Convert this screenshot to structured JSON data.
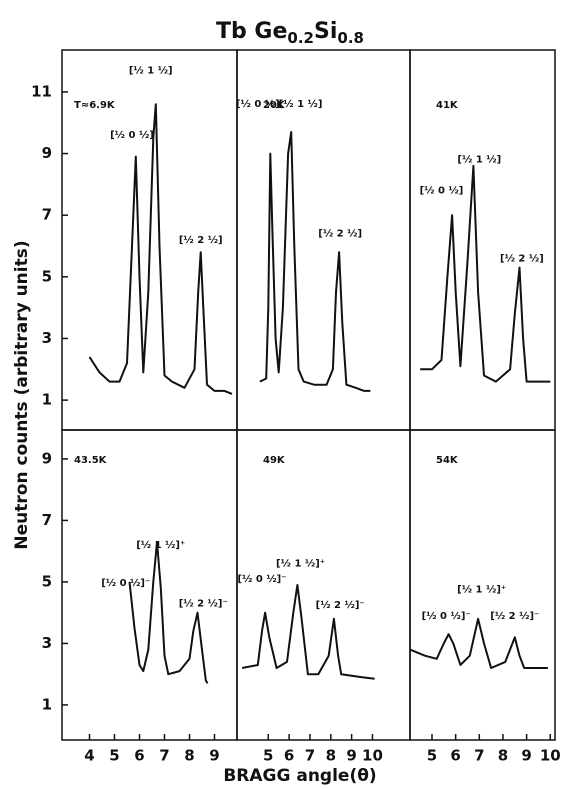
{
  "title_parts": [
    "Tb Ge",
    "0.2",
    "Si",
    "0.8"
  ],
  "y_label": "Neutron counts (arbitrary units)",
  "x_label": "BRAGG angle(θ)",
  "chart_data": [
    {
      "type": "line",
      "title": "T≈6.9K",
      "color": "#111111",
      "x": [
        4.0,
        4.4,
        4.8,
        5.2,
        5.5,
        5.7,
        5.85,
        6.0,
        6.15,
        6.35,
        6.55,
        6.65,
        6.8,
        7.0,
        7.3,
        7.8,
        8.2,
        8.35,
        8.45,
        8.55,
        8.7,
        9.0,
        9.4,
        9.7
      ],
      "values": [
        2.4,
        1.9,
        1.6,
        1.6,
        2.2,
        6.0,
        8.9,
        5.0,
        1.9,
        4.5,
        9.5,
        10.6,
        6.0,
        1.8,
        1.6,
        1.4,
        2.0,
        4.5,
        5.8,
        4.0,
        1.5,
        1.3,
        1.3,
        1.2
      ],
      "xlim": [
        2.9,
        9.9
      ],
      "ylim": [
        0.03,
        12.36
      ],
      "yticks": [
        1,
        3,
        5,
        7,
        9,
        11
      ],
      "annotations": [
        {
          "text": "[½ 0 ½]",
          "x": 5.7,
          "y": 9.6
        },
        {
          "text": "[½ 1 ½]",
          "x": 6.45,
          "y": 11.7
        },
        {
          "text": "[½ 2 ½]",
          "x": 8.45,
          "y": 6.2
        }
      ]
    },
    {
      "type": "line",
      "title": "20K",
      "color": "#111111",
      "x": [
        4.6,
        4.9,
        5.0,
        5.1,
        5.2,
        5.35,
        5.5,
        5.7,
        5.95,
        6.1,
        6.25,
        6.45,
        6.7,
        7.2,
        7.8,
        8.1,
        8.25,
        8.4,
        8.55,
        8.75,
        9.2,
        9.6,
        9.9
      ],
      "values": [
        1.6,
        1.7,
        4.0,
        9.0,
        6.5,
        3.0,
        1.9,
        4.0,
        9.0,
        9.7,
        6.0,
        2.0,
        1.6,
        1.5,
        1.5,
        2.0,
        4.5,
        5.8,
        3.5,
        1.5,
        1.4,
        1.3,
        1.3
      ],
      "xlim": [
        3.5,
        11.8
      ],
      "ylim": [
        0.03,
        12.36
      ],
      "annotations": [
        {
          "text": "[½ 0 ½]",
          "x": 4.5,
          "y": 10.6
        },
        {
          "text": "[½ 1 ½]",
          "x": 6.55,
          "y": 10.6
        },
        {
          "text": "[½ 2 ½]",
          "x": 8.45,
          "y": 6.4
        }
      ]
    },
    {
      "type": "line",
      "title": "41K",
      "color": "#111111",
      "x": [
        4.5,
        5.0,
        5.4,
        5.65,
        5.85,
        6.0,
        6.2,
        6.5,
        6.75,
        6.95,
        7.2,
        7.7,
        8.3,
        8.5,
        8.7,
        8.85,
        9.0,
        9.5,
        10.0
      ],
      "values": [
        2.0,
        2.0,
        2.3,
        5.0,
        7.0,
        4.5,
        2.1,
        5.5,
        8.6,
        4.5,
        1.8,
        1.6,
        2.0,
        3.8,
        5.3,
        3.0,
        1.6,
        1.6,
        1.6
      ],
      "xlim": [
        4.07,
        10.2
      ],
      "ylim": [
        0.03,
        12.36
      ],
      "annotations": [
        {
          "text": "[½ 0 ½]",
          "x": 5.4,
          "y": 7.8
        },
        {
          "text": "[½ 1 ½]",
          "x": 7.0,
          "y": 8.8
        },
        {
          "text": "[½ 2 ½]",
          "x": 8.8,
          "y": 5.6
        }
      ]
    },
    {
      "type": "line",
      "title": "43.5K",
      "color": "#111111",
      "x": [
        5.6,
        5.8,
        6.0,
        6.15,
        6.35,
        6.55,
        6.7,
        6.85,
        7.0,
        7.15,
        7.6,
        8.0,
        8.15,
        8.32,
        8.5,
        8.65,
        8.72
      ],
      "values": [
        5.0,
        3.5,
        2.3,
        2.1,
        2.8,
        5.0,
        6.3,
        4.8,
        2.6,
        2.0,
        2.1,
        2.5,
        3.4,
        4.0,
        2.8,
        1.8,
        1.7
      ],
      "xlim": [
        2.9,
        9.9
      ],
      "ylim": [
        -0.14,
        9.94
      ],
      "xticks": [
        4,
        5,
        6,
        7,
        8,
        9
      ],
      "yticks": [
        1,
        3,
        5,
        7,
        9
      ],
      "annotations": [
        {
          "text": "[½ 0 ½]⁻",
          "x": 5.45,
          "y": 4.97
        },
        {
          "text": "[½ 1 ½]⁺",
          "x": 6.85,
          "y": 6.2
        },
        {
          "text": "[½ 2 ½]⁻",
          "x": 8.55,
          "y": 4.3
        }
      ]
    },
    {
      "type": "line",
      "title": "49K",
      "color": "#111111",
      "x": [
        3.75,
        4.5,
        4.7,
        4.85,
        5.05,
        5.4,
        5.9,
        6.2,
        6.4,
        6.6,
        6.9,
        7.4,
        7.9,
        8.15,
        8.35,
        8.5,
        9.5,
        10.1
      ],
      "values": [
        2.2,
        2.3,
        3.4,
        4.0,
        3.2,
        2.2,
        2.4,
        4.0,
        4.9,
        3.8,
        2.0,
        2.0,
        2.6,
        3.8,
        2.6,
        2.0,
        1.9,
        1.85
      ],
      "xlim": [
        3.5,
        11.8
      ],
      "ylim": [
        -0.14,
        9.94
      ],
      "xticks": [
        5,
        6,
        7,
        8,
        9,
        10
      ],
      "annotations": [
        {
          "text": "[½ 0 ½]⁻",
          "x": 4.7,
          "y": 5.1
        },
        {
          "text": "[½ 1 ½]⁺",
          "x": 6.55,
          "y": 5.6
        },
        {
          "text": "[½ 2 ½]⁻",
          "x": 8.45,
          "y": 4.25
        }
      ]
    },
    {
      "type": "line",
      "title": "54K",
      "color": "#111111",
      "x": [
        4.07,
        4.7,
        5.2,
        5.5,
        5.7,
        5.9,
        6.2,
        6.6,
        6.95,
        7.2,
        7.5,
        8.1,
        8.5,
        8.7,
        8.9,
        9.4,
        9.9
      ],
      "values": [
        2.8,
        2.6,
        2.5,
        3.0,
        3.3,
        3.0,
        2.3,
        2.6,
        3.8,
        3.0,
        2.2,
        2.4,
        3.2,
        2.6,
        2.2,
        2.2,
        2.2
      ],
      "xlim": [
        4.07,
        10.2
      ],
      "ylim": [
        -0.14,
        9.94
      ],
      "xticks": [
        5,
        6,
        7,
        8,
        9,
        10
      ],
      "annotations": [
        {
          "text": "[½ 0 ½]⁻",
          "x": 5.6,
          "y": 3.9
        },
        {
          "text": "[½ 1 ½]⁺",
          "x": 7.1,
          "y": 4.75
        },
        {
          "text": "[½ 2 ½]⁻",
          "x": 8.5,
          "y": 3.9
        }
      ]
    }
  ]
}
